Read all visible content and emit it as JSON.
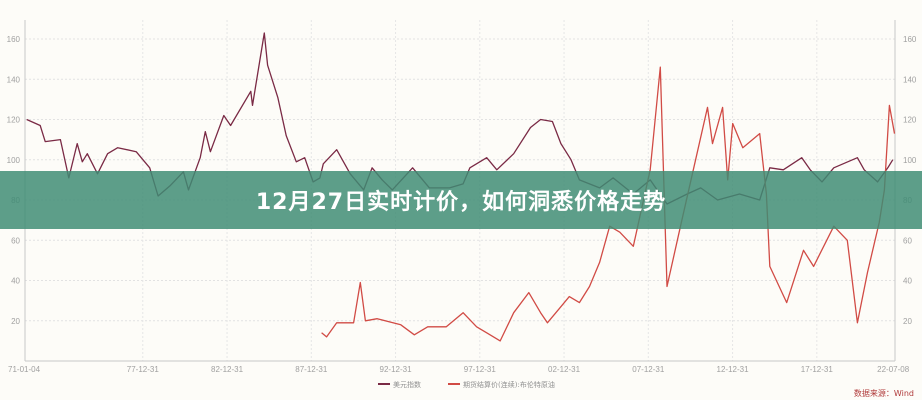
{
  "banner": {
    "title": "12月27日实时计价，如何洞悉价格走势"
  },
  "source": "数据来源：Wind",
  "colors": {
    "background": "#fdfcf8",
    "banner": "#3e8c74",
    "dollar_index": "#7a2a45",
    "brent": "#d14b45",
    "source": "#b03a3a"
  },
  "chart_data": {
    "type": "line",
    "title": "",
    "xlabel": "",
    "ylabel": "",
    "grid": true,
    "legend_position": "bottom",
    "x_range": [
      1971.0,
      2022.6
    ],
    "ylim_left": [
      0,
      170
    ],
    "ylim_right": [
      0,
      170
    ],
    "x_tick_labels": [
      {
        "x": 1971.0,
        "label": "71-01-04"
      },
      {
        "x": 1977.99,
        "label": "77-12-31"
      },
      {
        "x": 1982.99,
        "label": "82-12-31"
      },
      {
        "x": 1987.99,
        "label": "87-12-31"
      },
      {
        "x": 1992.99,
        "label": "92-12-31"
      },
      {
        "x": 1997.99,
        "label": "97-12-31"
      },
      {
        "x": 2002.99,
        "label": "02-12-31"
      },
      {
        "x": 2007.99,
        "label": "07-12-31"
      },
      {
        "x": 2012.99,
        "label": "12-12-31"
      },
      {
        "x": 2017.99,
        "label": "17-12-31"
      },
      {
        "x": 2022.52,
        "label": "22-07-08"
      }
    ],
    "y_ticks_left": [
      20,
      40,
      60,
      80,
      100,
      120,
      140,
      160
    ],
    "y_ticks_right": [
      20,
      40,
      60,
      80,
      100,
      120,
      140,
      160
    ],
    "series": [
      {
        "name": "美元指数",
        "axis": "left",
        "color": "#7a2a45",
        "points": [
          [
            1971.1,
            120
          ],
          [
            1971.9,
            117
          ],
          [
            1972.2,
            109
          ],
          [
            1973.1,
            110
          ],
          [
            1973.6,
            91
          ],
          [
            1974.1,
            108
          ],
          [
            1974.4,
            99
          ],
          [
            1974.7,
            103
          ],
          [
            1975.3,
            93
          ],
          [
            1975.9,
            103
          ],
          [
            1976.5,
            106
          ],
          [
            1977.6,
            104
          ],
          [
            1978.4,
            96
          ],
          [
            1978.9,
            82
          ],
          [
            1979.6,
            87
          ],
          [
            1980.4,
            94
          ],
          [
            1980.7,
            85
          ],
          [
            1981.4,
            101
          ],
          [
            1981.7,
            114
          ],
          [
            1982.0,
            104
          ],
          [
            1982.8,
            122
          ],
          [
            1983.2,
            117
          ],
          [
            1984.4,
            134
          ],
          [
            1984.5,
            127
          ],
          [
            1985.2,
            163
          ],
          [
            1985.4,
            147
          ],
          [
            1986.0,
            131
          ],
          [
            1986.5,
            112
          ],
          [
            1987.1,
            99
          ],
          [
            1987.6,
            101
          ],
          [
            1988.1,
            89
          ],
          [
            1988.5,
            91
          ],
          [
            1988.7,
            98
          ],
          [
            1989.5,
            105
          ],
          [
            1990.3,
            93
          ],
          [
            1991.1,
            85
          ],
          [
            1991.6,
            96
          ],
          [
            1992.2,
            90
          ],
          [
            1992.8,
            85
          ],
          [
            1994.0,
            96
          ],
          [
            1995.0,
            86
          ],
          [
            1996.2,
            86
          ],
          [
            1997.0,
            88
          ],
          [
            1997.4,
            96
          ],
          [
            1998.4,
            101
          ],
          [
            1999.0,
            95
          ],
          [
            2000.0,
            103
          ],
          [
            2001.0,
            116
          ],
          [
            2001.6,
            120
          ],
          [
            2002.3,
            119
          ],
          [
            2002.8,
            108
          ],
          [
            2003.4,
            100
          ],
          [
            2003.9,
            90
          ],
          [
            2004.5,
            88
          ],
          [
            2005.1,
            86
          ],
          [
            2005.9,
            91
          ],
          [
            2007.1,
            83
          ],
          [
            2008.1,
            90
          ],
          [
            2009.1,
            78
          ],
          [
            2010.3,
            83
          ],
          [
            2011.1,
            86
          ],
          [
            2012.1,
            80
          ],
          [
            2013.4,
            83
          ],
          [
            2014.6,
            80
          ],
          [
            2015.2,
            96
          ],
          [
            2016.0,
            95
          ],
          [
            2017.1,
            101
          ],
          [
            2017.6,
            95
          ],
          [
            2018.3,
            89
          ],
          [
            2019.0,
            96
          ],
          [
            2020.4,
            101
          ],
          [
            2020.8,
            95
          ],
          [
            2021.6,
            89
          ],
          [
            2022.2,
            96
          ],
          [
            2022.5,
            100
          ]
        ]
      },
      {
        "name": "期货结算价(连续):布伦特原油",
        "axis": "right",
        "color": "#d14b45",
        "points": [
          [
            1988.6,
            14
          ],
          [
            1988.9,
            12
          ],
          [
            1989.5,
            19
          ],
          [
            1990.5,
            19
          ],
          [
            1990.9,
            39
          ],
          [
            1991.2,
            20
          ],
          [
            1991.9,
            21
          ],
          [
            1993.3,
            18
          ],
          [
            1994.1,
            13
          ],
          [
            1994.9,
            17
          ],
          [
            1996.0,
            17
          ],
          [
            1997.0,
            24
          ],
          [
            1997.8,
            17
          ],
          [
            1998.4,
            14
          ],
          [
            1999.2,
            10
          ],
          [
            2000.0,
            24
          ],
          [
            2000.9,
            34
          ],
          [
            2001.6,
            24
          ],
          [
            2002.0,
            19
          ],
          [
            2002.8,
            27
          ],
          [
            2003.3,
            32
          ],
          [
            2003.9,
            29
          ],
          [
            2004.5,
            37
          ],
          [
            2005.1,
            49
          ],
          [
            2005.7,
            67
          ],
          [
            2006.3,
            64
          ],
          [
            2007.1,
            57
          ],
          [
            2008.1,
            95
          ],
          [
            2008.7,
            146
          ],
          [
            2009.1,
            37
          ],
          [
            2009.9,
            67
          ],
          [
            2011.5,
            126
          ],
          [
            2011.8,
            108
          ],
          [
            2012.4,
            126
          ],
          [
            2012.7,
            90
          ],
          [
            2013.0,
            118
          ],
          [
            2013.6,
            106
          ],
          [
            2014.6,
            113
          ],
          [
            2015.0,
            83
          ],
          [
            2015.2,
            47
          ],
          [
            2016.2,
            29
          ],
          [
            2017.2,
            55
          ],
          [
            2017.8,
            47
          ],
          [
            2019.0,
            67
          ],
          [
            2019.8,
            60
          ],
          [
            2020.4,
            19
          ],
          [
            2021.0,
            44
          ],
          [
            2021.7,
            69
          ],
          [
            2022.0,
            85
          ],
          [
            2022.3,
            127
          ],
          [
            2022.6,
            113
          ]
        ]
      }
    ]
  }
}
